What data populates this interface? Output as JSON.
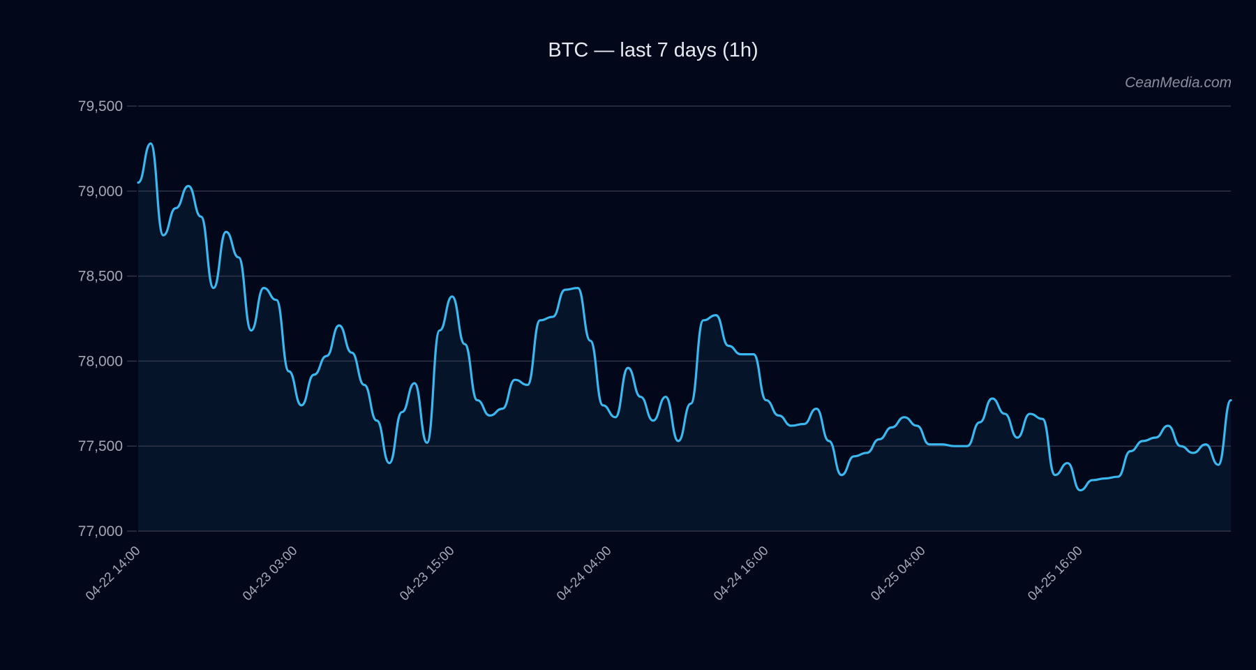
{
  "header": {
    "title": "BTC — last 7 days (1h)",
    "watermark": "CeanMedia.com"
  },
  "colors": {
    "background": "#03071a",
    "plot_fill": "#06142a",
    "line": "#3bb8f0",
    "grid": "#2e3648",
    "tick_text": "#a3a8b5"
  },
  "chart_data": {
    "type": "area",
    "title": "BTC — last 7 days (1h)",
    "xlabel": "",
    "ylabel": "",
    "ylim": [
      77000,
      79500
    ],
    "yticks": [
      77000,
      77500,
      78000,
      78500,
      79000,
      79500
    ],
    "ytick_labels": [
      "77,000",
      "77,500",
      "78,000",
      "78,500",
      "79,000",
      "79,500"
    ],
    "xtick_labels": [
      "04-22 14:00",
      "04-23 03:00",
      "04-23 15:00",
      "04-24 04:00",
      "04-24 16:00",
      "04-25 04:00",
      "04-25 16:00"
    ],
    "xtick_positions": [
      0,
      0.1437,
      0.2874,
      0.4311,
      0.5748,
      0.7185,
      0.8622
    ],
    "grid": true,
    "legend": null,
    "series": [
      {
        "name": "BTC",
        "values": [
          79050,
          79280,
          78740,
          78900,
          79030,
          78850,
          78430,
          78760,
          78610,
          78180,
          78430,
          78360,
          77940,
          77740,
          77920,
          78030,
          78210,
          78050,
          77860,
          77650,
          77400,
          77700,
          77870,
          77520,
          78180,
          78380,
          78100,
          77770,
          77680,
          77720,
          77890,
          77860,
          78240,
          78260,
          78420,
          78430,
          78120,
          77740,
          77670,
          77960,
          77790,
          77650,
          77790,
          77530,
          77750,
          78240,
          78270,
          78090,
          78040,
          78040,
          77770,
          77680,
          77620,
          77630,
          77720,
          77530,
          77330,
          77440,
          77460,
          77540,
          77610,
          77670,
          77620,
          77510,
          77510,
          77500,
          77500,
          77640,
          77780,
          77690,
          77550,
          77690,
          77660,
          77330,
          77400,
          77240,
          77300,
          77310,
          77320,
          77470,
          77530,
          77550,
          77620,
          77500,
          77460,
          77510,
          77390,
          77770
        ]
      }
    ]
  }
}
